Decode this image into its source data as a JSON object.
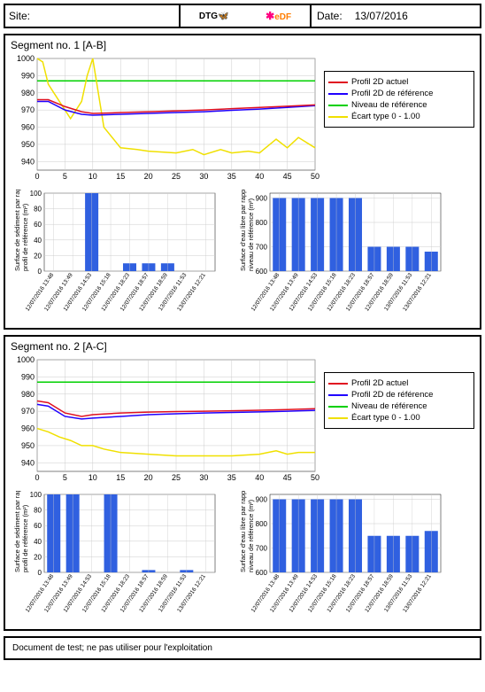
{
  "header": {
    "site_label": "Site:",
    "site_value": "",
    "date_label": "Date:",
    "date_value": "13/07/2016"
  },
  "footer_text": "Document de test; ne pas utiliser pour l'exploitation",
  "line_chart_common": {
    "ylim": [
      935,
      1000
    ],
    "yticks": [
      940,
      950,
      960,
      970,
      980,
      990,
      1000
    ],
    "xlim": [
      0,
      50
    ],
    "xticks": [
      0,
      5,
      10,
      15,
      20,
      25,
      30,
      35,
      40,
      45,
      50
    ],
    "ref_level_y": 987,
    "ref_level_color": "#00d000",
    "grid_color": "#cccccc",
    "bg_color": "#ffffff",
    "axis_font_size": 9
  },
  "legend": {
    "items": [
      {
        "label": "Profil 2D actuel",
        "color": "#e01020"
      },
      {
        "label": "Profil 2D de référence",
        "color": "#2000ff"
      },
      {
        "label": "Niveau de référence",
        "color": "#00d000"
      },
      {
        "label": "Écart type 0 - 1.00",
        "color": "#f0e000"
      }
    ]
  },
  "bar_x_labels": [
    "12/07/2016 13:48",
    "12/07/2016 13:49",
    "12/07/2016 14:53",
    "12/07/2016 15:18",
    "12/07/2016 18:23",
    "12/07/2016 18:57",
    "12/07/2016 18:59",
    "13/07/2016 11:53",
    "13/07/2016 12:21"
  ],
  "bar_style": {
    "color": "#3060e0",
    "bg": "#ffffff",
    "grid": "#cccccc",
    "font_size": 8
  },
  "segments": [
    {
      "title": "Segment no. 1 [A-B]",
      "line_actuel": {
        "color": "#e01020",
        "x": [
          0,
          2,
          5,
          8,
          10,
          15,
          20,
          25,
          30,
          35,
          40,
          45,
          50
        ],
        "y": [
          976,
          976,
          972,
          969,
          968,
          968.5,
          969,
          969.5,
          970,
          970.8,
          971.5,
          972.2,
          973
        ]
      },
      "line_reference": {
        "color": "#2000ff",
        "x": [
          0,
          2,
          5,
          8,
          10,
          15,
          20,
          25,
          30,
          35,
          40,
          45,
          50
        ],
        "y": [
          975,
          975,
          970,
          967.5,
          967,
          967.5,
          968,
          968.5,
          969,
          969.8,
          970.5,
          971.5,
          972.5
        ]
      },
      "line_ecart": {
        "color": "#f0e000",
        "x": [
          0,
          1,
          2,
          4,
          6,
          8,
          9,
          10,
          12,
          15,
          18,
          20,
          25,
          28,
          30,
          33,
          35,
          38,
          40,
          43,
          45,
          47,
          50
        ],
        "y": [
          1000,
          998,
          985,
          975,
          965,
          975,
          990,
          1000,
          960,
          948,
          947,
          946,
          945,
          947,
          944,
          947,
          945,
          946,
          945,
          953,
          948,
          954,
          948
        ]
      },
      "sediment": {
        "ylabel": "Surface de sédiment par rapport au\nprofil de référence (m²)",
        "ylim": [
          0,
          100
        ],
        "yticks": [
          0,
          20,
          40,
          60,
          80,
          100
        ],
        "values": [
          0,
          0,
          100,
          0,
          10,
          10,
          10,
          0,
          0
        ]
      },
      "eaulibre": {
        "ylabel": "Surface d'eau libre par rapport au\nniveau de référence (m²)",
        "ylim": [
          600,
          920
        ],
        "yticks": [
          600,
          700,
          800,
          900
        ],
        "values": [
          900,
          900,
          900,
          900,
          900,
          700,
          700,
          700,
          680
        ]
      }
    },
    {
      "title": "Segment no. 2 [A-C]",
      "line_actuel": {
        "color": "#e01020",
        "x": [
          0,
          2,
          5,
          8,
          10,
          15,
          20,
          25,
          30,
          35,
          40,
          45,
          50
        ],
        "y": [
          976,
          975,
          969,
          967,
          968,
          969,
          969.5,
          969.8,
          970,
          970.3,
          970.6,
          971,
          971.5
        ]
      },
      "line_reference": {
        "color": "#2000ff",
        "x": [
          0,
          2,
          5,
          8,
          10,
          15,
          20,
          25,
          30,
          35,
          40,
          45,
          50
        ],
        "y": [
          974,
          973,
          967,
          965.5,
          966,
          967,
          968,
          968.5,
          969,
          969.3,
          969.6,
          970,
          970.5
        ]
      },
      "line_ecart": {
        "color": "#f0e000",
        "x": [
          0,
          2,
          4,
          6,
          8,
          10,
          12,
          15,
          20,
          25,
          30,
          35,
          40,
          43,
          45,
          47,
          50
        ],
        "y": [
          960,
          958,
          955,
          953,
          950,
          950,
          948,
          946,
          945,
          944,
          944,
          944,
          945,
          947,
          945,
          946,
          946
        ]
      },
      "sediment": {
        "ylabel": "Surface de sédiment par rapport au\nprofil de référence (m²)",
        "ylim": [
          0,
          100
        ],
        "yticks": [
          0,
          20,
          40,
          60,
          80,
          100
        ],
        "values": [
          100,
          100,
          0,
          100,
          0,
          3,
          0,
          3,
          0
        ]
      },
      "eaulibre": {
        "ylabel": "Surface d'eau libre par rapport au\nniveau de référence (m²)",
        "ylim": [
          600,
          920
        ],
        "yticks": [
          600,
          700,
          800,
          900
        ],
        "values": [
          900,
          900,
          900,
          900,
          900,
          750,
          750,
          750,
          770
        ]
      }
    }
  ]
}
